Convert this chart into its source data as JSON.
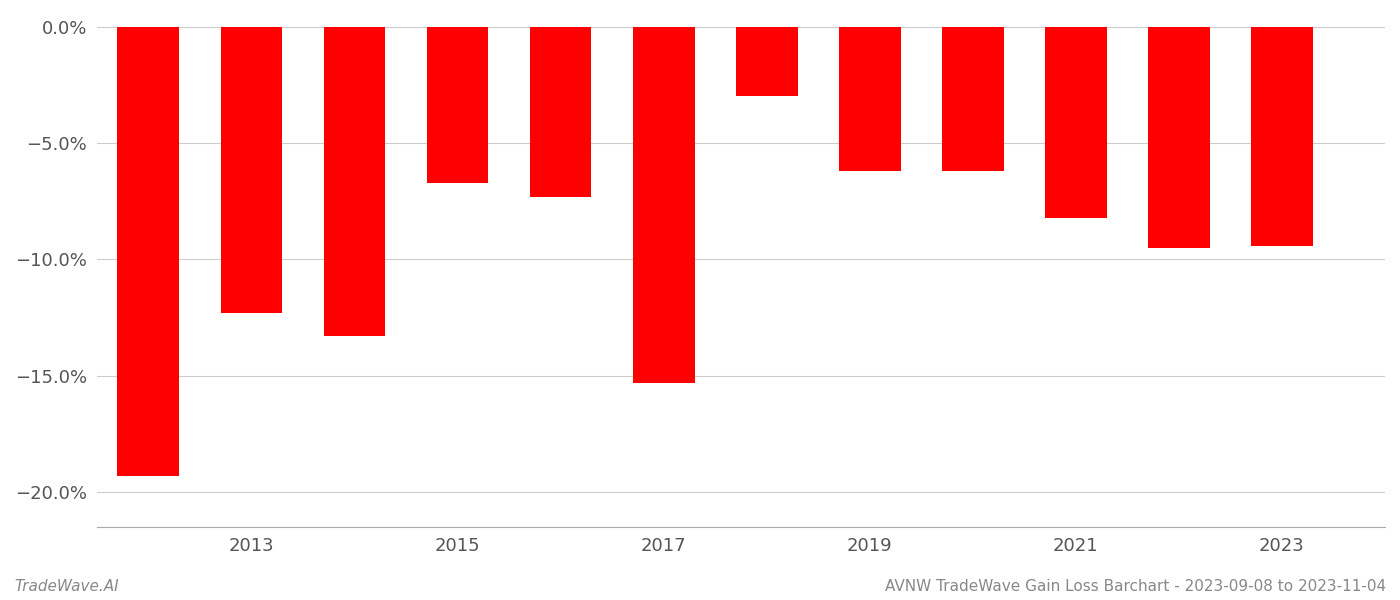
{
  "years": [
    2012,
    2013,
    2014,
    2015,
    2016,
    2017,
    2018,
    2019,
    2020,
    2021,
    2022,
    2023
  ],
  "values": [
    -0.193,
    -0.123,
    -0.133,
    -0.067,
    -0.073,
    -0.153,
    -0.03,
    -0.062,
    -0.062,
    -0.082,
    -0.095,
    -0.094
  ],
  "bar_color": "#ff0000",
  "background_color": "#ffffff",
  "grid_color": "#cccccc",
  "ylim": [
    -0.215,
    0.005
  ],
  "yticks": [
    0.0,
    -0.05,
    -0.1,
    -0.15,
    -0.2
  ],
  "footer_left": "TradeWave.AI",
  "footer_right": "AVNW TradeWave Gain Loss Barchart - 2023-09-08 to 2023-11-04"
}
